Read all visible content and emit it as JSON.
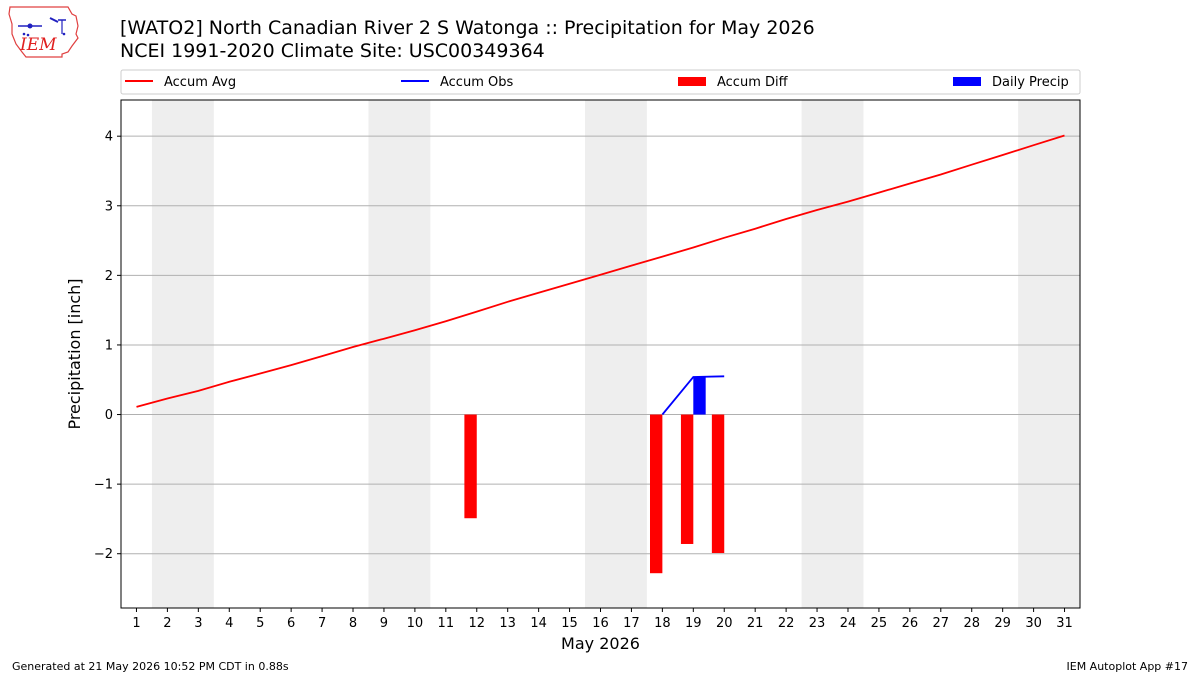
{
  "header": {
    "title": "[WATO2] North Canadian River 2 S Watonga :: Precipitation for May 2026",
    "subtitle": "NCEI 1991-2020 Climate Site: USC00349364",
    "logo_text": "IEM"
  },
  "footer": {
    "generated": "Generated at 21 May 2026 10:52 PM CDT in 0.88s",
    "app": "IEM Autoplot App #17"
  },
  "chart_data": {
    "type": "line",
    "xlabel": "May 2026",
    "ylabel": "Precipitation [inch]",
    "xlim": [
      0.5,
      31.5
    ],
    "ylim": [
      -2.78,
      4.52
    ],
    "x_ticks": [
      "1",
      "2",
      "3",
      "4",
      "5",
      "6",
      "7",
      "8",
      "9",
      "10",
      "11",
      "12",
      "13",
      "14",
      "15",
      "16",
      "17",
      "18",
      "19",
      "20",
      "21",
      "22",
      "23",
      "24",
      "25",
      "26",
      "27",
      "28",
      "29",
      "30",
      "31"
    ],
    "y_ticks": [
      -2,
      -1,
      0,
      1,
      2,
      3,
      4
    ],
    "grid": "horizontal",
    "weekend_shading_days": [
      2,
      3,
      9,
      10,
      16,
      17,
      23,
      24,
      30,
      31
    ],
    "legend": {
      "position": "top",
      "entries": [
        {
          "label": "Accum Avg",
          "kind": "line",
          "color": "#ff0000"
        },
        {
          "label": "Accum Obs",
          "kind": "line",
          "color": "#0000ff"
        },
        {
          "label": "Accum Diff",
          "kind": "bar",
          "color": "#ff0000"
        },
        {
          "label": "Daily Precip",
          "kind": "bar",
          "color": "#0000ff"
        }
      ]
    },
    "series": [
      {
        "name": "Accum Avg",
        "type": "line",
        "color": "#ff0000",
        "x": [
          1,
          2,
          3,
          4,
          5,
          6,
          7,
          8,
          9,
          10,
          11,
          12,
          13,
          14,
          15,
          16,
          17,
          18,
          19,
          20,
          21,
          22,
          23,
          24,
          25,
          26,
          27,
          28,
          29,
          30,
          31
        ],
        "values": [
          0.11,
          0.23,
          0.34,
          0.47,
          0.59,
          0.71,
          0.84,
          0.97,
          1.09,
          1.21,
          1.34,
          1.48,
          1.62,
          1.75,
          1.88,
          2.01,
          2.14,
          2.27,
          2.4,
          2.54,
          2.67,
          2.81,
          2.94,
          3.06,
          3.19,
          3.32,
          3.45,
          3.59,
          3.73,
          3.87,
          4.01
        ]
      },
      {
        "name": "Accum Obs",
        "type": "line",
        "color": "#0000ff",
        "x": [
          18,
          19,
          20
        ],
        "values": [
          0.0,
          0.54,
          0.55
        ]
      },
      {
        "name": "Accum Diff",
        "type": "bar",
        "color": "#ff0000",
        "x": [
          12,
          18,
          19,
          20
        ],
        "values": [
          -1.49,
          -2.28,
          -1.86,
          -1.99
        ]
      },
      {
        "name": "Daily Precip",
        "type": "bar",
        "color": "#0000ff",
        "x": [
          19
        ],
        "values": [
          0.54
        ]
      }
    ]
  }
}
